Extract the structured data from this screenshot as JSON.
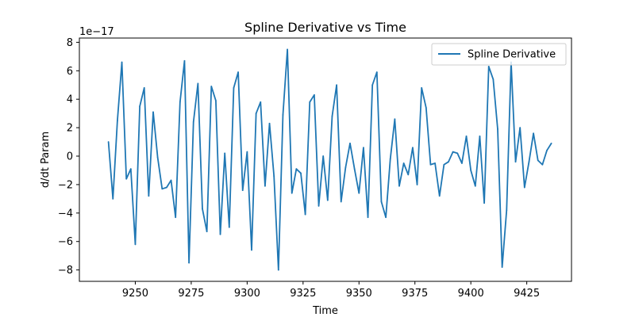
{
  "chart_data": {
    "type": "line",
    "title": "Spline Derivative vs Time",
    "xlabel": "Time",
    "ylabel": "d/dt Param",
    "y_offset_label": "1e−17",
    "y_scale": 1e-17,
    "xlim": [
      9225,
      9445
    ],
    "ylim": [
      -8.8,
      8.3
    ],
    "x_ticks": [
      9250,
      9275,
      9300,
      9325,
      9350,
      9375,
      9400,
      9425
    ],
    "y_ticks": [
      -8,
      -6,
      -4,
      -2,
      0,
      2,
      4,
      6,
      8
    ],
    "y_tick_labels": [
      "−8",
      "−6",
      "−4",
      "−2",
      "0",
      "2",
      "4",
      "6",
      "8"
    ],
    "grid": false,
    "legend_position": "top-right",
    "line_color": "#1f77b4",
    "series": [
      {
        "name": "Spline Derivative",
        "x": [
          9238,
          9240,
          9242,
          9244,
          9246,
          9248,
          9250,
          9252,
          9254,
          9256,
          9258,
          9260,
          9262,
          9264,
          9266,
          9268,
          9270,
          9272,
          9274,
          9276,
          9278,
          9280,
          9282,
          9284,
          9286,
          9288,
          9290,
          9292,
          9294,
          9296,
          9298,
          9300,
          9302,
          9304,
          9306,
          9308,
          9310,
          9312,
          9314,
          9316,
          9318,
          9320,
          9322,
          9324,
          9326,
          9328,
          9330,
          9332,
          9334,
          9336,
          9338,
          9340,
          9342,
          9344,
          9346,
          9348,
          9350,
          9352,
          9354,
          9356,
          9358,
          9360,
          9362,
          9364,
          9366,
          9368,
          9370,
          9372,
          9374,
          9376,
          9378,
          9380,
          9382,
          9384,
          9386,
          9388,
          9390,
          9392,
          9394,
          9396,
          9398,
          9400,
          9402,
          9404,
          9406,
          9408,
          9410,
          9412,
          9414,
          9416,
          9418,
          9420,
          9422,
          9424,
          9426,
          9428,
          9430,
          9432,
          9434,
          9436
        ],
        "values": [
          1.0,
          -3.0,
          2.5,
          6.6,
          -1.6,
          -0.9,
          -6.2,
          3.5,
          4.8,
          -2.8,
          3.1,
          -0.1,
          -2.3,
          -2.2,
          -1.7,
          -4.3,
          3.8,
          6.7,
          -7.5,
          2.4,
          5.1,
          -3.7,
          -5.3,
          4.9,
          3.9,
          -5.5,
          0.2,
          -5.0,
          4.8,
          5.9,
          -2.4,
          0.3,
          -6.6,
          3.0,
          3.8,
          -2.1,
          2.3,
          -1.4,
          -8.0,
          2.9,
          7.5,
          -2.6,
          -0.9,
          -1.2,
          -4.1,
          3.8,
          4.3,
          -3.5,
          0.0,
          -3.1,
          2.8,
          5.0,
          -3.2,
          -0.8,
          0.9,
          -0.9,
          -2.6,
          0.6,
          -4.3,
          5.0,
          5.9,
          -3.2,
          -4.3,
          -0.2,
          2.6,
          -2.1,
          -0.5,
          -1.3,
          0.6,
          -2.0,
          4.8,
          3.4,
          -0.6,
          -0.5,
          -2.8,
          -0.6,
          -0.4,
          0.3,
          0.2,
          -0.5,
          1.4,
          -1.0,
          -2.1,
          1.4,
          -3.3,
          6.3,
          5.4,
          1.9,
          -7.8,
          -3.8,
          6.6,
          -0.4,
          2.0,
          -2.2,
          -0.4,
          1.6,
          -0.3,
          -0.6,
          0.4,
          0.9
        ]
      }
    ]
  }
}
